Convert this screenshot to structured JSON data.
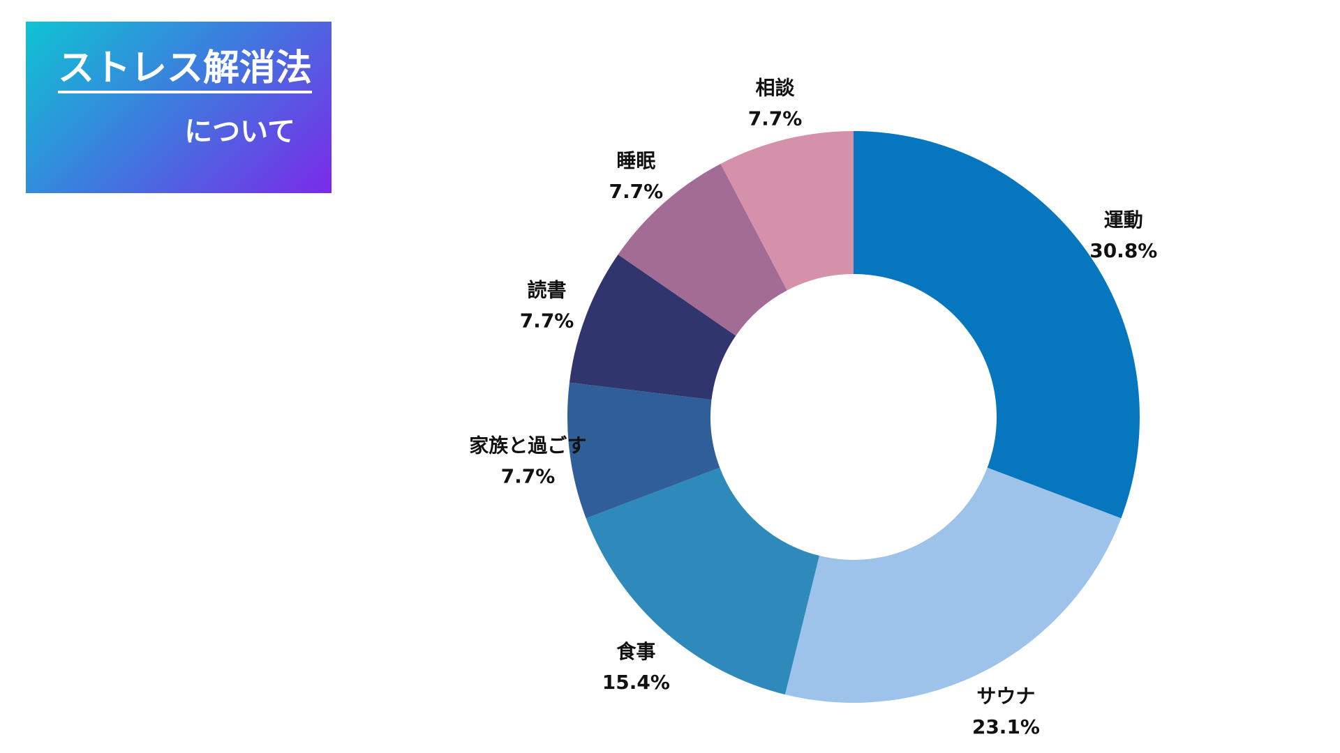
{
  "title": {
    "main": "ストレス解消法",
    "sub": "について"
  },
  "chart_data": {
    "type": "pie",
    "donut": true,
    "categories": [
      "運動",
      "サウナ",
      "食事",
      "家族と過ごす",
      "読書",
      "睡眠",
      "相談"
    ],
    "values": [
      30.8,
      23.1,
      15.4,
      7.7,
      7.7,
      7.7,
      7.7
    ],
    "labels": [
      "30.8%",
      "23.1%",
      "15.4%",
      "7.7%",
      "7.7%",
      "7.7%",
      "7.7%"
    ],
    "colors": [
      "#0676be",
      "#9dc3eb",
      "#2e8aba",
      "#2f5e98",
      "#31356d",
      "#a36c94",
      "#d590aa"
    ],
    "start": "top",
    "direction": "clockwise"
  }
}
